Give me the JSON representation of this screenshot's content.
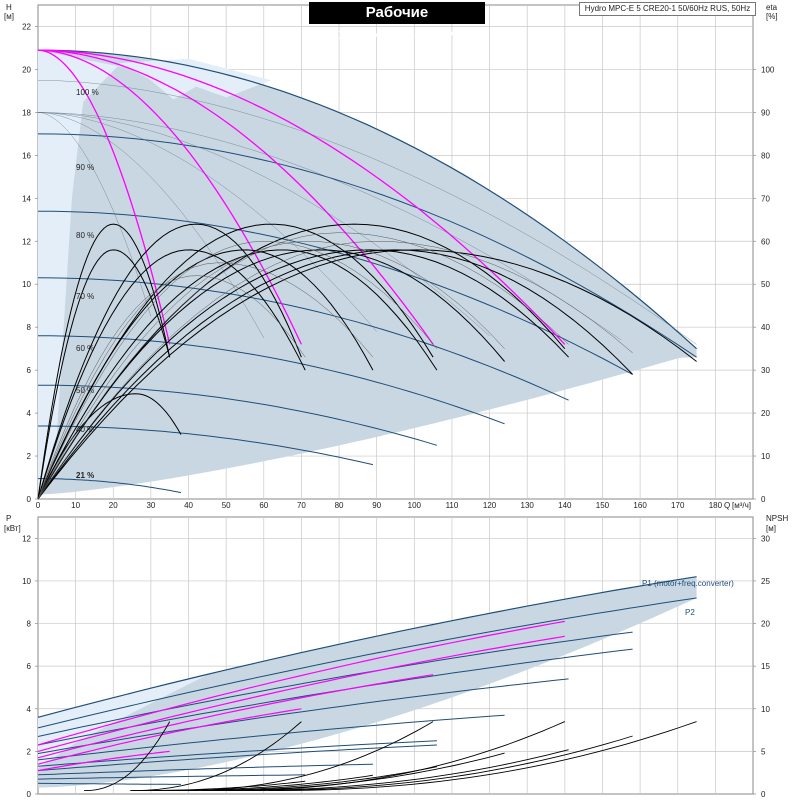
{
  "header": {
    "title": "Рабочие характеристики",
    "model": "Hydro MPC-E 5 CRE20-1 50/60Hz RUS, 50Hz"
  },
  "colors": {
    "background": "#ffffff",
    "grid": "#c8c8c8",
    "envelope_fill": "#c9d7e3",
    "light_fill": "#e3eef8",
    "head_curve": "#1f4e79",
    "efficiency_curve": "#000000",
    "power_pump_curve": "#ff00ff",
    "npsh_curve": "#000000"
  },
  "chart_data": [
    {
      "type": "line",
      "name": "performance",
      "ylabel_left": "H",
      "ylabel_left_unit": "[м]",
      "ylabel_right": "eta",
      "ylabel_right_unit": "[%]",
      "xlabel": "Q",
      "xlabel_unit": "[м³/ч]",
      "xlim": [
        0,
        190
      ],
      "ylim_left": [
        0,
        23
      ],
      "ylim_right": [
        0,
        115
      ],
      "x_ticks": [
        0,
        10,
        20,
        30,
        40,
        50,
        60,
        70,
        80,
        90,
        100,
        110,
        120,
        130,
        140,
        150,
        160,
        170,
        180
      ],
      "y_ticks_left": [
        0,
        2,
        4,
        6,
        8,
        10,
        12,
        14,
        16,
        18,
        20,
        22
      ],
      "y_ticks_right": [
        0,
        10,
        20,
        30,
        40,
        50,
        60,
        70,
        80,
        90,
        100
      ],
      "grid": true,
      "speed_labels": [
        "100 %",
        "90 %",
        "80 %",
        "70 %",
        "60 %",
        "50 %",
        "40 %",
        "21 %"
      ],
      "speed_curves": [
        {
          "label": "100 %",
          "shutoff_head": 20.9,
          "q_max": 175,
          "h_end": 7.0
        },
        {
          "label": "90 %",
          "shutoff_head": 17.0,
          "q_max": 175,
          "h_end": 6.6
        },
        {
          "label": "80 %",
          "shutoff_head": 13.4,
          "q_max": 158,
          "h_end": 5.8
        },
        {
          "label": "70 %",
          "shutoff_head": 10.3,
          "q_max": 141,
          "h_end": 4.6
        },
        {
          "label": "60 %",
          "shutoff_head": 7.6,
          "q_max": 124,
          "h_end": 3.5
        },
        {
          "label": "50 %",
          "shutoff_head": 5.3,
          "q_max": 106,
          "h_end": 2.5
        },
        {
          "label": "40 %",
          "shutoff_head": 3.4,
          "q_max": 89,
          "h_end": 1.6
        },
        {
          "label": "21 %",
          "shutoff_head": 0.95,
          "q_max": 38,
          "h_end": 0.3
        }
      ],
      "single_pump_curves": [
        {
          "pumps": 1,
          "shutoff_head": 20.9,
          "q_max": 35,
          "h_end": 7.2
        },
        {
          "pumps": 2,
          "shutoff_head": 20.9,
          "q_max": 70,
          "h_end": 7.2
        },
        {
          "pumps": 3,
          "shutoff_head": 20.9,
          "q_max": 105,
          "h_end": 7.2
        },
        {
          "pumps": 4,
          "shutoff_head": 20.9,
          "q_max": 140,
          "h_end": 7.2
        }
      ],
      "efficiency_curves": [
        {
          "q_max": 38,
          "q_peak": 26,
          "eta_peak": 24.5,
          "eta_end": 15
        },
        {
          "q_max": 35,
          "q_peak": 20,
          "eta_peak": 64,
          "eta_end": 33
        },
        {
          "q_max": 35,
          "q_peak": 20,
          "eta_peak": 58,
          "eta_end": 33
        },
        {
          "q_max": 70,
          "q_peak": 42,
          "eta_peak": 64,
          "eta_end": 33
        },
        {
          "q_max": 71,
          "q_peak": 40,
          "eta_peak": 58,
          "eta_end": 30
        },
        {
          "q_max": 89,
          "q_peak": 55,
          "eta_peak": 58,
          "eta_end": 30
        },
        {
          "q_max": 105,
          "q_peak": 62,
          "eta_peak": 64,
          "eta_end": 33
        },
        {
          "q_max": 106,
          "q_peak": 65,
          "eta_peak": 58,
          "eta_end": 30
        },
        {
          "q_max": 124,
          "q_peak": 75,
          "eta_peak": 58,
          "eta_end": 32
        },
        {
          "q_max": 140,
          "q_peak": 84,
          "eta_peak": 64,
          "eta_end": 35
        },
        {
          "q_max": 141,
          "q_peak": 88,
          "eta_peak": 58,
          "eta_end": 33
        },
        {
          "q_max": 158,
          "q_peak": 95,
          "eta_peak": 58,
          "eta_end": 29
        },
        {
          "q_max": 175,
          "q_peak": 100,
          "eta_peak": 58,
          "eta_end": 32
        }
      ]
    },
    {
      "type": "line",
      "name": "power_npsh",
      "ylabel_left": "P",
      "ylabel_left_unit": "[кВт]",
      "ylabel_right": "NPSH",
      "ylabel_right_unit": "[м]",
      "xlim": [
        0,
        190
      ],
      "ylim_left": [
        0,
        13
      ],
      "ylim_right": [
        0,
        32.5
      ],
      "y_ticks_left": [
        0,
        2,
        4,
        6,
        8,
        10,
        12
      ],
      "y_ticks_right": [
        0,
        5,
        10,
        15,
        20,
        25,
        30
      ],
      "grid": true,
      "series_labels": [
        "P1 (motor+freq.converter)",
        "P2"
      ],
      "p1_envelope": {
        "p0": 3.6,
        "q_max": 175,
        "p_end": 10.2
      },
      "p2_envelope": {
        "p0": 3.1,
        "q_max": 175,
        "p_end": 9.2
      },
      "power_speed_curves": [
        {
          "p0": 2.7,
          "q_max": 158,
          "p_end": 7.6
        },
        {
          "p0": 2.3,
          "q_max": 158,
          "p_end": 6.8
        },
        {
          "p0": 1.9,
          "q_max": 141,
          "p_end": 5.4
        },
        {
          "p0": 1.6,
          "q_max": 124,
          "p_end": 3.7
        },
        {
          "p0": 1.3,
          "q_max": 106,
          "p_end": 2.5
        },
        {
          "p0": 1.1,
          "q_max": 106,
          "p_end": 2.3
        },
        {
          "p0": 0.9,
          "q_max": 89,
          "p_end": 1.4
        },
        {
          "p0": 0.7,
          "q_max": 71,
          "p_end": 0.9
        },
        {
          "p0": 0.5,
          "q_max": 38,
          "p_end": 0.45
        }
      ],
      "power_pump_curves": [
        {
          "p0": 2.3,
          "q_max": 140,
          "p_end": 8.1
        },
        {
          "p0": 2.0,
          "q_max": 140,
          "p_end": 7.4
        },
        {
          "p0": 1.7,
          "q_max": 105,
          "p_end": 5.6
        },
        {
          "p0": 1.4,
          "q_max": 70,
          "p_end": 4.0
        },
        {
          "p0": 1.1,
          "q_max": 35,
          "p_end": 2.0
        }
      ],
      "npsh_curves": [
        {
          "q_max": 35,
          "npsh_end": 8.5
        },
        {
          "q_max": 70,
          "npsh_end": 8.5
        },
        {
          "q_max": 105,
          "npsh_end": 8.5
        },
        {
          "q_max": 140,
          "npsh_end": 8.5
        },
        {
          "q_max": 141,
          "npsh_end": 5.2
        },
        {
          "q_max": 158,
          "npsh_end": 6.8
        },
        {
          "q_max": 175,
          "npsh_end": 8.5
        },
        {
          "q_max": 124,
          "npsh_end": 4.8
        },
        {
          "q_max": 106,
          "npsh_end": 3.2
        },
        {
          "q_max": 89,
          "npsh_end": 2.2
        },
        {
          "q_max": 71,
          "npsh_end": 1.5
        }
      ]
    }
  ]
}
